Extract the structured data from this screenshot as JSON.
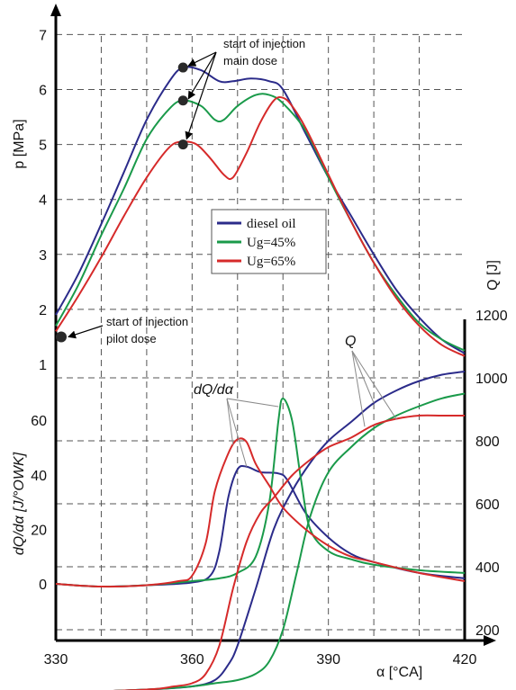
{
  "chart_data": {
    "type": "line",
    "x": {
      "label": "α [°CA]",
      "range": [
        330,
        420
      ],
      "ticks": [
        "330",
        "360",
        "390",
        "420"
      ]
    },
    "y_pressure": {
      "label": "p [MPa]",
      "range": [
        1,
        7
      ],
      "ticks": [
        "1",
        "2",
        "3",
        "4",
        "5",
        "6",
        "7"
      ]
    },
    "y_heat_release_rate": {
      "label": "dQ/dα [J/°OWK]",
      "range": [
        -10,
        70
      ],
      "ticks": [
        "0",
        "20",
        "40",
        "60"
      ]
    },
    "y_heat": {
      "label": "Q [J]",
      "range": [
        0,
        1200
      ],
      "ticks": [
        "200",
        "400",
        "600",
        "800",
        "1000",
        "1200"
      ]
    },
    "legend": {
      "position": "center",
      "entries": [
        {
          "label": "diesel oil",
          "color": "#2b2b8a"
        },
        {
          "label": "Ug=45%",
          "color": "#1a9a4a"
        },
        {
          "label": "Ug=65%",
          "color": "#d62a2a"
        }
      ]
    },
    "annotations": {
      "main_dose": [
        "start of injection",
        "main dose"
      ],
      "pilot_dose": [
        "start of injection",
        "pilot dose"
      ],
      "label_q": "Q",
      "label_dq": "dQ/dα"
    },
    "grid": true,
    "series": [
      {
        "name": "diesel oil",
        "color": "#2b2b8a",
        "pressure": [
          [
            330,
            1.9
          ],
          [
            335,
            2.65
          ],
          [
            340,
            3.55
          ],
          [
            345,
            4.5
          ],
          [
            350,
            5.45
          ],
          [
            355,
            6.15
          ],
          [
            358,
            6.4
          ],
          [
            362,
            6.35
          ],
          [
            366,
            6.15
          ],
          [
            369,
            6.15
          ],
          [
            373,
            6.2
          ],
          [
            377,
            6.15
          ],
          [
            380,
            6.0
          ],
          [
            385,
            5.2
          ],
          [
            390,
            4.4
          ],
          [
            395,
            3.7
          ],
          [
            400,
            3.0
          ],
          [
            405,
            2.35
          ],
          [
            410,
            1.85
          ],
          [
            415,
            1.45
          ],
          [
            420,
            1.2
          ]
        ],
        "heat_release_rate": [
          [
            330,
            0
          ],
          [
            340,
            -1
          ],
          [
            350,
            -0.5
          ],
          [
            360,
            0.5
          ],
          [
            364,
            3
          ],
          [
            366,
            12
          ],
          [
            368,
            32
          ],
          [
            370,
            42
          ],
          [
            372,
            43
          ],
          [
            375,
            41
          ],
          [
            379,
            40.5
          ],
          [
            381,
            38
          ],
          [
            385,
            26
          ],
          [
            390,
            17
          ],
          [
            395,
            11
          ],
          [
            400,
            8
          ],
          [
            410,
            4
          ],
          [
            420,
            2
          ]
        ],
        "heat": [
          [
            330,
            0
          ],
          [
            350,
            10
          ],
          [
            360,
            20
          ],
          [
            365,
            40
          ],
          [
            368,
            90
          ],
          [
            370,
            150
          ],
          [
            374,
            330
          ],
          [
            378,
            520
          ],
          [
            382,
            640
          ],
          [
            386,
            730
          ],
          [
            390,
            800
          ],
          [
            395,
            860
          ],
          [
            400,
            920
          ],
          [
            405,
            960
          ],
          [
            410,
            990
          ],
          [
            415,
            1010
          ],
          [
            420,
            1020
          ]
        ]
      },
      {
        "name": "Ug=45%",
        "color": "#1a9a4a",
        "pressure": [
          [
            330,
            1.7
          ],
          [
            335,
            2.45
          ],
          [
            340,
            3.35
          ],
          [
            345,
            4.2
          ],
          [
            350,
            5.1
          ],
          [
            355,
            5.65
          ],
          [
            358,
            5.8
          ],
          [
            362,
            5.7
          ],
          [
            365,
            5.45
          ],
          [
            367,
            5.45
          ],
          [
            370,
            5.7
          ],
          [
            374,
            5.9
          ],
          [
            377,
            5.9
          ],
          [
            380,
            5.75
          ],
          [
            385,
            5.25
          ],
          [
            390,
            4.4
          ],
          [
            395,
            3.6
          ],
          [
            400,
            2.85
          ],
          [
            405,
            2.25
          ],
          [
            410,
            1.75
          ],
          [
            415,
            1.45
          ],
          [
            420,
            1.25
          ]
        ],
        "heat_release_rate": [
          [
            330,
            0
          ],
          [
            340,
            -1
          ],
          [
            350,
            -0.5
          ],
          [
            360,
            1
          ],
          [
            366,
            2
          ],
          [
            370,
            4
          ],
          [
            374,
            10
          ],
          [
            377,
            30
          ],
          [
            379,
            60
          ],
          [
            380,
            68
          ],
          [
            382,
            60
          ],
          [
            384,
            38
          ],
          [
            386,
            20
          ],
          [
            390,
            12
          ],
          [
            395,
            9
          ],
          [
            400,
            7
          ],
          [
            410,
            5
          ],
          [
            420,
            4
          ]
        ],
        "heat": [
          [
            330,
            0
          ],
          [
            350,
            10
          ],
          [
            360,
            20
          ],
          [
            365,
            30
          ],
          [
            370,
            40
          ],
          [
            374,
            60
          ],
          [
            377,
            100
          ],
          [
            380,
            200
          ],
          [
            383,
            380
          ],
          [
            386,
            560
          ],
          [
            390,
            700
          ],
          [
            395,
            780
          ],
          [
            400,
            840
          ],
          [
            405,
            880
          ],
          [
            410,
            910
          ],
          [
            415,
            935
          ],
          [
            420,
            950
          ]
        ]
      },
      {
        "name": "Ug=65%",
        "color": "#d62a2a",
        "pressure": [
          [
            330,
            1.6
          ],
          [
            335,
            2.25
          ],
          [
            340,
            2.95
          ],
          [
            345,
            3.7
          ],
          [
            350,
            4.4
          ],
          [
            355,
            4.95
          ],
          [
            358,
            5.05
          ],
          [
            361,
            5.0
          ],
          [
            364,
            4.75
          ],
          [
            367,
            4.45
          ],
          [
            369,
            4.4
          ],
          [
            372,
            4.85
          ],
          [
            375,
            5.4
          ],
          [
            378,
            5.8
          ],
          [
            380,
            5.85
          ],
          [
            382,
            5.7
          ],
          [
            385,
            5.3
          ],
          [
            390,
            4.45
          ],
          [
            395,
            3.6
          ],
          [
            400,
            2.85
          ],
          [
            405,
            2.2
          ],
          [
            410,
            1.7
          ],
          [
            415,
            1.35
          ],
          [
            420,
            1.15
          ]
        ],
        "heat_release_rate": [
          [
            330,
            0
          ],
          [
            340,
            -1
          ],
          [
            350,
            -0.5
          ],
          [
            357,
            1
          ],
          [
            360,
            3
          ],
          [
            363,
            15
          ],
          [
            365,
            34
          ],
          [
            368,
            48
          ],
          [
            370,
            53
          ],
          [
            372,
            52
          ],
          [
            374,
            44
          ],
          [
            377,
            36
          ],
          [
            380,
            28
          ],
          [
            385,
            20
          ],
          [
            390,
            14
          ],
          [
            395,
            10
          ],
          [
            400,
            8
          ],
          [
            410,
            4
          ],
          [
            420,
            1
          ]
        ],
        "heat": [
          [
            330,
            0
          ],
          [
            350,
            10
          ],
          [
            356,
            20
          ],
          [
            360,
            30
          ],
          [
            363,
            60
          ],
          [
            366,
            150
          ],
          [
            369,
            330
          ],
          [
            372,
            480
          ],
          [
            375,
            570
          ],
          [
            378,
            620
          ],
          [
            382,
            690
          ],
          [
            386,
            740
          ],
          [
            390,
            780
          ],
          [
            395,
            810
          ],
          [
            400,
            850
          ],
          [
            405,
            870
          ],
          [
            410,
            880
          ],
          [
            415,
            880
          ],
          [
            420,
            880
          ]
        ]
      }
    ]
  }
}
